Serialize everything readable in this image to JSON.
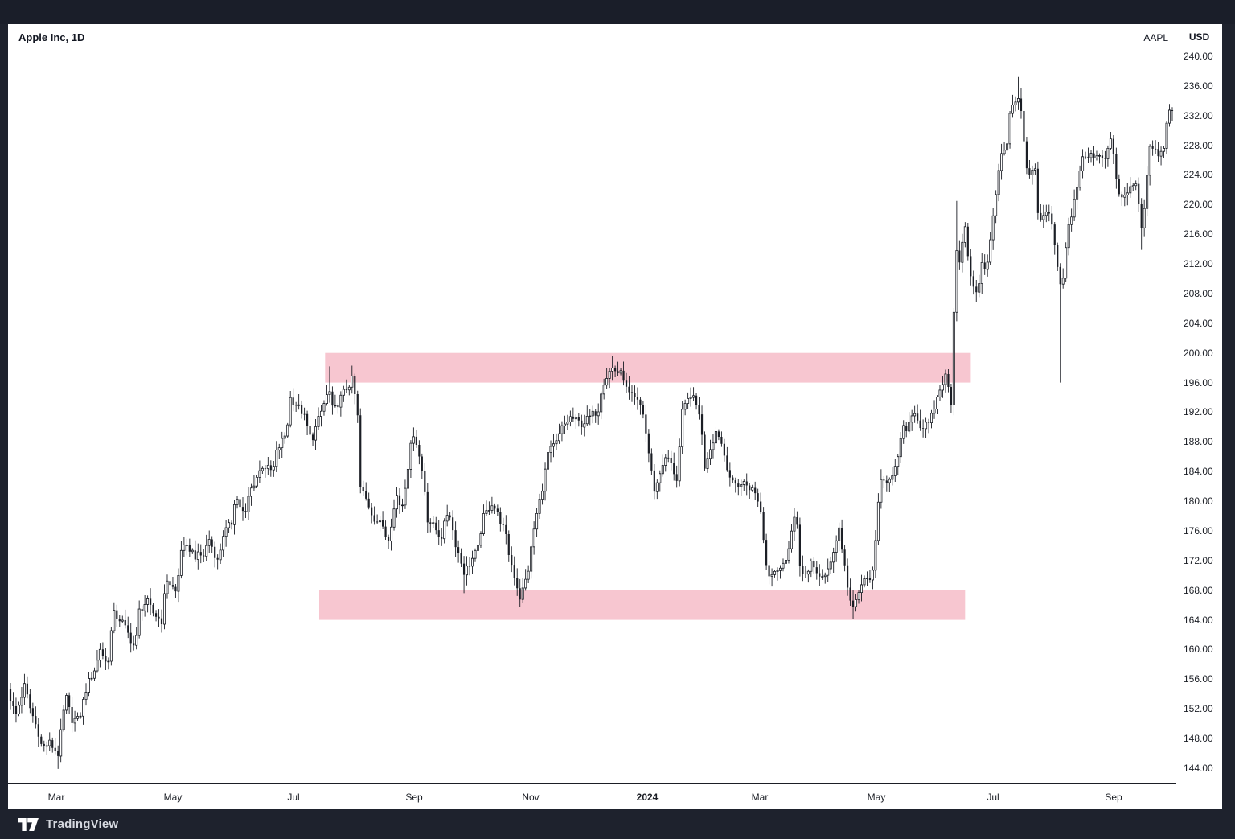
{
  "header": {
    "title": "Apple Inc, 1D",
    "ticker": "AAPL"
  },
  "price_axis": {
    "currency_label": "USD",
    "tick_labels": [
      "240.00",
      "236.00",
      "232.00",
      "228.00",
      "224.00",
      "220.00",
      "216.00",
      "212.00",
      "208.00",
      "204.00",
      "200.00",
      "196.00",
      "192.00",
      "188.00",
      "184.00",
      "180.00",
      "176.00",
      "172.00",
      "168.00",
      "164.00",
      "160.00",
      "156.00",
      "152.00",
      "148.00",
      "144.00"
    ]
  },
  "time_axis": {
    "ticks": [
      {
        "label": "Mar",
        "date": "2023-03-01",
        "bold": false
      },
      {
        "label": "May",
        "date": "2023-05-01",
        "bold": false
      },
      {
        "label": "Jul",
        "date": "2023-07-01",
        "bold": false
      },
      {
        "label": "Sep",
        "date": "2023-09-01",
        "bold": false
      },
      {
        "label": "Nov",
        "date": "2023-11-01",
        "bold": false
      },
      {
        "label": "2024",
        "date": "2024-01-01",
        "bold": true
      },
      {
        "label": "Mar",
        "date": "2024-03-01",
        "bold": false
      },
      {
        "label": "May",
        "date": "2024-05-01",
        "bold": false
      },
      {
        "label": "Jul",
        "date": "2024-07-01",
        "bold": false
      },
      {
        "label": "Sep",
        "date": "2024-09-01",
        "bold": false
      }
    ]
  },
  "footer": {
    "brand_name": "TradingView"
  },
  "colors": {
    "frame": "#1e222d",
    "chart_background": "#ffffff",
    "candle": "#1b1e25",
    "candle_up_fill": "#ffffff",
    "zone_pink": "#f7c6d0",
    "axis_text": "#131722",
    "footer_text": "#d6d9e0"
  },
  "chart_data": {
    "type": "candlestick",
    "title": "Apple Inc, 1D",
    "symbol": "AAPL",
    "interval": "1D",
    "currency": "USD",
    "x_range": [
      "2023-02-06",
      "2024-09-30"
    ],
    "y_axis": {
      "min": 144,
      "max": 240,
      "step": 4,
      "unit": "USD",
      "grid": false
    },
    "zones": [
      {
        "name": "resistance-zone",
        "price_low": 196.0,
        "price_high": 200.0,
        "date_from": "2023-07-17",
        "date_to": "2024-06-20",
        "color": "#f7c6d0"
      },
      {
        "name": "support-zone",
        "price_low": 164.0,
        "price_high": 168.0,
        "date_from": "2023-07-14",
        "date_to": "2024-06-17",
        "color": "#f7c6d0"
      }
    ],
    "price_path": [
      [
        "2023-02-06",
        154.7
      ],
      [
        "2023-02-10",
        151.0
      ],
      [
        "2023-02-15",
        155.3
      ],
      [
        "2023-02-17",
        152.6
      ],
      [
        "2023-02-22",
        148.9
      ],
      [
        "2023-02-24",
        146.7
      ],
      [
        "2023-02-28",
        147.4
      ],
      [
        "2023-03-02",
        145.9
      ],
      [
        "2023-03-06",
        153.8
      ],
      [
        "2023-03-09",
        150.6
      ],
      [
        "2023-03-13",
        150.5
      ],
      [
        "2023-03-17",
        155.0
      ],
      [
        "2023-03-22",
        157.8
      ],
      [
        "2023-03-24",
        160.2
      ],
      [
        "2023-03-28",
        157.7
      ],
      [
        "2023-03-31",
        164.9
      ],
      [
        "2023-04-05",
        163.8
      ],
      [
        "2023-04-12",
        160.1
      ],
      [
        "2023-04-14",
        165.2
      ],
      [
        "2023-04-18",
        166.5
      ],
      [
        "2023-04-21",
        165.0
      ],
      [
        "2023-04-26",
        163.8
      ],
      [
        "2023-04-28",
        169.7
      ],
      [
        "2023-05-03",
        167.5
      ],
      [
        "2023-05-05",
        173.6
      ],
      [
        "2023-05-10",
        173.6
      ],
      [
        "2023-05-12",
        172.6
      ],
      [
        "2023-05-17",
        172.7
      ],
      [
        "2023-05-19",
        175.2
      ],
      [
        "2023-05-24",
        171.6
      ],
      [
        "2023-05-26",
        175.4
      ],
      [
        "2023-05-31",
        177.2
      ],
      [
        "2023-06-02",
        180.9
      ],
      [
        "2023-06-07",
        177.8
      ],
      [
        "2023-06-09",
        181.0
      ],
      [
        "2023-06-13",
        183.3
      ],
      [
        "2023-06-16",
        184.9
      ],
      [
        "2023-06-21",
        183.9
      ],
      [
        "2023-06-23",
        186.7
      ],
      [
        "2023-06-28",
        189.3
      ],
      [
        "2023-06-30",
        194.0
      ],
      [
        "2023-07-06",
        191.8
      ],
      [
        "2023-07-10",
        188.1
      ],
      [
        "2023-07-13",
        190.5
      ],
      [
        "2023-07-19",
        195.1
      ],
      [
        "2023-07-21",
        191.9
      ],
      [
        "2023-07-26",
        194.5
      ],
      [
        "2023-07-31",
        196.5
      ],
      [
        "2023-08-03",
        191.2
      ],
      [
        "2023-08-04",
        182.0
      ],
      [
        "2023-08-08",
        179.8
      ],
      [
        "2023-08-11",
        177.8
      ],
      [
        "2023-08-16",
        176.6
      ],
      [
        "2023-08-18",
        174.5
      ],
      [
        "2023-08-23",
        181.1
      ],
      [
        "2023-08-25",
        178.6
      ],
      [
        "2023-08-30",
        187.6
      ],
      [
        "2023-09-01",
        189.5
      ],
      [
        "2023-09-06",
        182.9
      ],
      [
        "2023-09-08",
        177.6
      ],
      [
        "2023-09-12",
        176.3
      ],
      [
        "2023-09-15",
        175.0
      ],
      [
        "2023-09-19",
        179.1
      ],
      [
        "2023-09-22",
        174.8
      ],
      [
        "2023-09-27",
        170.4
      ],
      [
        "2023-09-29",
        171.2
      ],
      [
        "2023-10-04",
        173.7
      ],
      [
        "2023-10-06",
        177.5
      ],
      [
        "2023-10-11",
        179.8
      ],
      [
        "2023-10-13",
        178.9
      ],
      [
        "2023-10-18",
        175.8
      ],
      [
        "2023-10-20",
        172.9
      ],
      [
        "2023-10-26",
        166.9
      ],
      [
        "2023-10-30",
        170.3
      ],
      [
        "2023-11-03",
        176.7
      ],
      [
        "2023-11-08",
        182.9
      ],
      [
        "2023-11-10",
        186.4
      ],
      [
        "2023-11-15",
        188.0
      ],
      [
        "2023-11-17",
        189.7
      ],
      [
        "2023-11-22",
        191.3
      ],
      [
        "2023-11-28",
        190.4
      ],
      [
        "2023-12-01",
        191.2
      ],
      [
        "2023-12-06",
        192.3
      ],
      [
        "2023-12-08",
        195.7
      ],
      [
        "2023-12-13",
        198.0
      ],
      [
        "2023-12-15",
        197.6
      ],
      [
        "2023-12-19",
        196.9
      ],
      [
        "2023-12-21",
        194.7
      ],
      [
        "2023-12-27",
        193.2
      ],
      [
        "2023-12-29",
        192.5
      ],
      [
        "2024-01-03",
        184.3
      ],
      [
        "2024-01-05",
        181.2
      ],
      [
        "2024-01-09",
        185.1
      ],
      [
        "2024-01-12",
        185.9
      ],
      [
        "2024-01-17",
        182.7
      ],
      [
        "2024-01-19",
        191.6
      ],
      [
        "2024-01-24",
        194.5
      ],
      [
        "2024-01-29",
        191.7
      ],
      [
        "2024-01-31",
        184.4
      ],
      [
        "2024-02-02",
        185.9
      ],
      [
        "2024-02-07",
        189.4
      ],
      [
        "2024-02-09",
        188.9
      ],
      [
        "2024-02-13",
        185.0
      ],
      [
        "2024-02-16",
        182.3
      ],
      [
        "2024-02-21",
        182.3
      ],
      [
        "2024-02-23",
        182.5
      ],
      [
        "2024-02-28",
        181.4
      ],
      [
        "2024-03-01",
        179.7
      ],
      [
        "2024-03-05",
        170.1
      ],
      [
        "2024-03-08",
        170.7
      ],
      [
        "2024-03-13",
        171.1
      ],
      [
        "2024-03-15",
        172.6
      ],
      [
        "2024-03-20",
        178.7
      ],
      [
        "2024-03-22",
        171.4
      ],
      [
        "2024-03-26",
        169.7
      ],
      [
        "2024-03-28",
        171.5
      ],
      [
        "2024-04-03",
        169.7
      ],
      [
        "2024-04-05",
        169.6
      ],
      [
        "2024-04-11",
        175.0
      ],
      [
        "2024-04-12",
        176.6
      ],
      [
        "2024-04-16",
        169.4
      ],
      [
        "2024-04-19",
        165.0
      ],
      [
        "2024-04-24",
        169.0
      ],
      [
        "2024-04-26",
        169.3
      ],
      [
        "2024-04-30",
        170.3
      ],
      [
        "2024-05-03",
        183.4
      ],
      [
        "2024-05-08",
        182.7
      ],
      [
        "2024-05-10",
        183.1
      ],
      [
        "2024-05-15",
        189.7
      ],
      [
        "2024-05-17",
        189.9
      ],
      [
        "2024-05-21",
        192.4
      ],
      [
        "2024-05-24",
        190.0
      ],
      [
        "2024-05-29",
        190.3
      ],
      [
        "2024-05-31",
        192.3
      ],
      [
        "2024-06-05",
        195.9
      ],
      [
        "2024-06-07",
        196.9
      ],
      [
        "2024-06-10",
        193.1
      ],
      [
        "2024-06-12",
        214.5
      ],
      [
        "2024-06-14",
        212.5
      ],
      [
        "2024-06-17",
        216.7
      ],
      [
        "2024-06-20",
        209.7
      ],
      [
        "2024-06-24",
        208.1
      ],
      [
        "2024-06-26",
        213.2
      ],
      [
        "2024-06-28",
        210.6
      ],
      [
        "2024-07-02",
        220.3
      ],
      [
        "2024-07-05",
        226.3
      ],
      [
        "2024-07-09",
        228.7
      ],
      [
        "2024-07-10",
        233.0
      ],
      [
        "2024-07-15",
        234.8
      ],
      [
        "2024-07-17",
        228.9
      ],
      [
        "2024-07-19",
        224.3
      ],
      [
        "2024-07-23",
        225.0
      ],
      [
        "2024-07-25",
        217.5
      ],
      [
        "2024-07-30",
        218.8
      ],
      [
        "2024-08-01",
        218.4
      ],
      [
        "2024-08-05",
        209.3
      ],
      [
        "2024-08-07",
        209.8
      ],
      [
        "2024-08-09",
        216.2
      ],
      [
        "2024-08-13",
        221.3
      ],
      [
        "2024-08-16",
        226.1
      ],
      [
        "2024-08-20",
        226.5
      ],
      [
        "2024-08-23",
        226.8
      ],
      [
        "2024-08-28",
        226.5
      ],
      [
        "2024-08-30",
        229.0
      ],
      [
        "2024-09-04",
        220.9
      ],
      [
        "2024-09-06",
        220.8
      ],
      [
        "2024-09-11",
        222.7
      ],
      [
        "2024-09-13",
        222.5
      ],
      [
        "2024-09-16",
        216.3
      ],
      [
        "2024-09-20",
        228.2
      ],
      [
        "2024-09-25",
        226.4
      ],
      [
        "2024-09-27",
        227.8
      ],
      [
        "2024-09-30",
        233.0
      ]
    ],
    "key_extremes": [
      [
        "2023-03-02",
        "low",
        143.9
      ],
      [
        "2023-07-19",
        "high",
        198.2
      ],
      [
        "2023-09-27",
        "low",
        167.6
      ],
      [
        "2023-10-26",
        "low",
        165.7
      ],
      [
        "2023-12-14",
        "high",
        199.6
      ],
      [
        "2024-03-08",
        "low",
        168.5
      ],
      [
        "2024-04-19",
        "low",
        164.1
      ],
      [
        "2024-06-12",
        "high",
        220.5
      ],
      [
        "2024-07-15",
        "high",
        237.2
      ],
      [
        "2024-08-05",
        "low",
        196.0
      ],
      [
        "2024-09-16",
        "low",
        213.9
      ]
    ]
  }
}
